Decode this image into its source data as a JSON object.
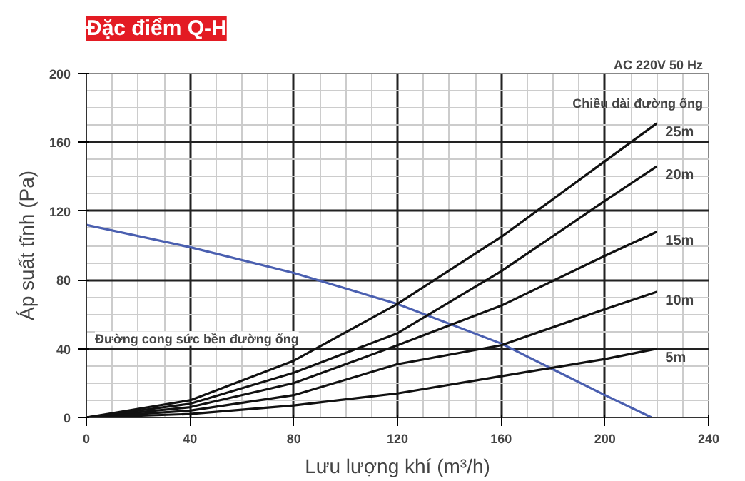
{
  "chart_data": {
    "type": "line",
    "title": "Đặc điểm Q-H",
    "xlabel": "Lưu lượng khí (m³/h)",
    "ylabel": "Áp suất tĩnh (Pa)",
    "annotations": [
      "AC 220V 50 Hz",
      "Chiều dài đường ống",
      "Đường cong sức bền đường ống"
    ],
    "xlim": [
      0,
      240
    ],
    "ylim": [
      0,
      200
    ],
    "xticks": [
      0,
      40,
      80,
      120,
      160,
      200,
      240
    ],
    "yticks": [
      0,
      40,
      80,
      120,
      160,
      200
    ],
    "grid": true,
    "marker": "none",
    "line_style": "solid",
    "series": [
      {
        "color": "#4a5fb0",
        "x": [
          0,
          40,
          80,
          120,
          160,
          180,
          200,
          218
        ],
        "values": [
          112,
          99,
          84,
          66,
          43,
          28,
          13,
          0
        ]
      },
      {
        "name": "25m",
        "color": "#111111",
        "x": [
          0,
          40,
          80,
          120,
          160,
          200,
          220
        ],
        "values": [
          0,
          10,
          33,
          66,
          105,
          149,
          171
        ]
      },
      {
        "name": "20m",
        "color": "#111111",
        "x": [
          0,
          40,
          80,
          120,
          160,
          200,
          220
        ],
        "values": [
          0,
          8,
          26,
          49,
          85,
          126,
          146
        ]
      },
      {
        "name": "15m",
        "color": "#111111",
        "x": [
          0,
          40,
          80,
          120,
          160,
          200,
          220
        ],
        "values": [
          0,
          6,
          20,
          42,
          65,
          94,
          108
        ]
      },
      {
        "name": "10m",
        "color": "#111111",
        "x": [
          0,
          40,
          80,
          120,
          160,
          200,
          220
        ],
        "values": [
          0,
          4,
          13,
          31,
          42,
          63,
          73
        ]
      },
      {
        "name": "5m",
        "color": "#111111",
        "x": [
          0,
          40,
          80,
          120,
          160,
          200,
          220
        ],
        "values": [
          0,
          2,
          7,
          14,
          24,
          34,
          40
        ]
      }
    ]
  }
}
